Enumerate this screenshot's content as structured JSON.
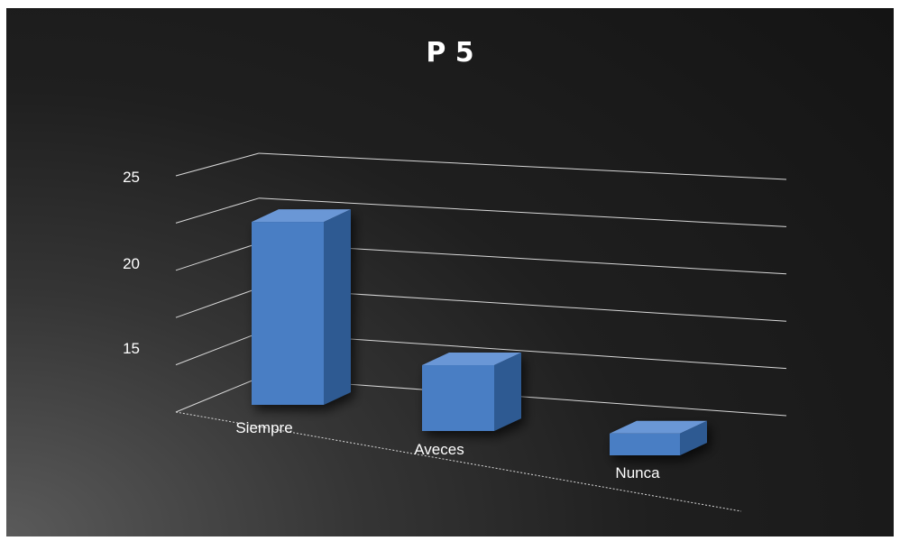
{
  "chart_data": {
    "type": "bar",
    "title": "P 5",
    "categories": [
      "Siempre",
      "Aveces",
      "Nunca"
    ],
    "values": [
      22,
      14,
      11
    ],
    "ylim": [
      10,
      25
    ],
    "y_ticks": [
      "15",
      "20",
      "25"
    ],
    "grid": true,
    "legend": "none",
    "xlabel": "",
    "ylabel": "",
    "colors": {
      "bar_front": "#4a7ec4",
      "bar_side": "#2f5a92",
      "bar_top": "#6b97d6",
      "grid": "#d9d9d9",
      "text": "#ffffff"
    }
  }
}
